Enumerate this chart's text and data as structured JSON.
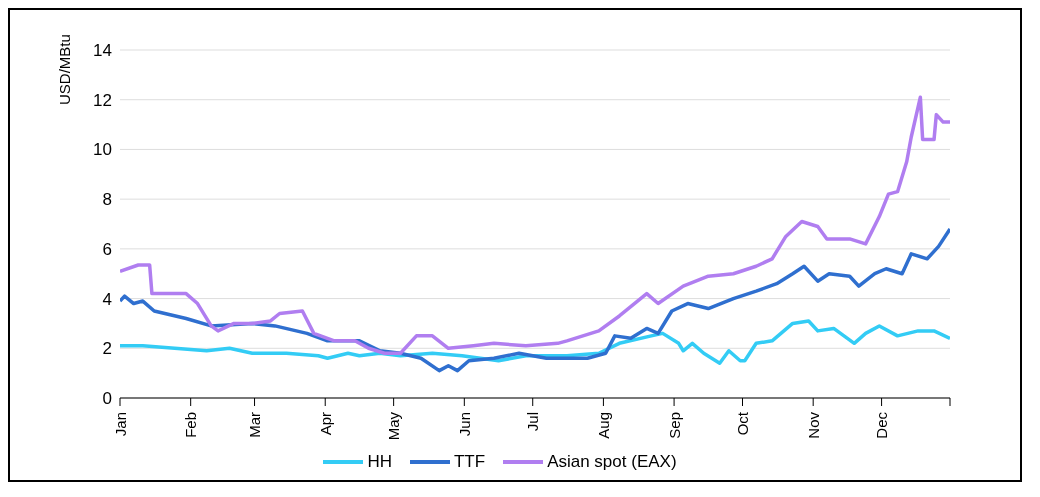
{
  "chart_data": {
    "type": "line",
    "ylabel": "USD/MBtu",
    "xlim": [
      "--01-01",
      "--12-31"
    ],
    "xticks": [
      {
        "value": "--01-01",
        "label": "Jan"
      },
      {
        "value": "--02-01",
        "label": "Feb"
      },
      {
        "value": "--03-01",
        "label": "Mar"
      },
      {
        "value": "--04-01",
        "label": "Apr"
      },
      {
        "value": "--05-01",
        "label": "May"
      },
      {
        "value": "--06-01",
        "label": "Jun"
      },
      {
        "value": "--07-01",
        "label": "Jul"
      },
      {
        "value": "--08-01",
        "label": "Aug"
      },
      {
        "value": "--09-01",
        "label": "Sep"
      },
      {
        "value": "--10-01",
        "label": "Oct"
      },
      {
        "value": "--11-01",
        "label": "Nov"
      },
      {
        "value": "--12-01",
        "label": "Dec"
      },
      {
        "value": "--12-31",
        "label": null
      }
    ],
    "ylim": [
      0,
      14
    ],
    "yticks": [
      0,
      2,
      4,
      6,
      8,
      10,
      12,
      14
    ],
    "grid": "y",
    "legend": "bottom",
    "marker": "none",
    "line_style": "solid",
    "series": [
      {
        "name": "HH",
        "color": "#33ccf5",
        "x": [
          "--01-01",
          "--01-11",
          "--01-25",
          "--02-08",
          "--02-18",
          "--02-28",
          "--03-15",
          "--03-29",
          "--04-02",
          "--04-11",
          "--04-16",
          "--04-25",
          "--05-04",
          "--05-18",
          "--05-31",
          "--06-16",
          "--06-28",
          "--07-16",
          "--07-30",
          "--08-08",
          "--08-22",
          "--08-27",
          "--09-03",
          "--09-05",
          "--09-09",
          "--09-14",
          "--09-21",
          "--09-25",
          "--09-30",
          "--10-02",
          "--10-07",
          "--10-14",
          "--10-23",
          "--10-30",
          "--11-03",
          "--11-10",
          "--11-19",
          "--11-24",
          "--11-30",
          "--12-08",
          "--12-17",
          "--12-24",
          "--12-31"
        ],
        "values": [
          2.1,
          2.1,
          2.0,
          1.9,
          2.0,
          1.8,
          1.8,
          1.7,
          1.6,
          1.8,
          1.7,
          1.8,
          1.7,
          1.8,
          1.7,
          1.5,
          1.7,
          1.7,
          1.8,
          2.2,
          2.5,
          2.6,
          2.2,
          1.9,
          2.2,
          1.8,
          1.4,
          1.9,
          1.5,
          1.5,
          2.2,
          2.3,
          3.0,
          3.1,
          2.7,
          2.8,
          2.2,
          2.6,
          2.9,
          2.5,
          2.7,
          2.7,
          2.4
        ]
      },
      {
        "name": "TTF",
        "color": "#2f6fcf",
        "x": [
          "--01-01",
          "--01-03",
          "--01-07",
          "--01-11",
          "--01-16",
          "--01-30",
          "--02-10",
          "--02-28",
          "--03-10",
          "--03-24",
          "--04-02",
          "--04-16",
          "--04-25",
          "--05-04",
          "--05-13",
          "--05-21",
          "--05-25",
          "--05-29",
          "--06-03",
          "--06-14",
          "--06-25",
          "--07-07",
          "--07-25",
          "--08-02",
          "--08-06",
          "--08-13",
          "--08-20",
          "--08-25",
          "--08-31",
          "--09-07",
          "--09-16",
          "--09-27",
          "--10-07",
          "--10-16",
          "--10-23",
          "--10-28",
          "--11-03",
          "--11-08",
          "--11-17",
          "--11-21",
          "--11-28",
          "--12-03",
          "--12-10",
          "--12-14",
          "--12-21",
          "--12-26",
          "--12-31"
        ],
        "values": [
          3.9,
          4.1,
          3.8,
          3.9,
          3.5,
          3.2,
          2.9,
          3.0,
          2.9,
          2.6,
          2.3,
          2.3,
          1.9,
          1.8,
          1.6,
          1.1,
          1.3,
          1.1,
          1.5,
          1.6,
          1.8,
          1.6,
          1.6,
          1.8,
          2.5,
          2.4,
          2.8,
          2.6,
          3.5,
          3.8,
          3.6,
          4.0,
          4.3,
          4.6,
          5.0,
          5.3,
          4.7,
          5.0,
          4.9,
          4.5,
          5.0,
          5.2,
          5.0,
          5.8,
          5.6,
          6.1,
          6.8
        ]
      },
      {
        "name": "Asian spot (EAX)",
        "color": "#b07ef0",
        "x": [
          "--01-01",
          "--01-09",
          "--01-14",
          "--01-15",
          "--01-30",
          "--02-04",
          "--02-10",
          "--02-13",
          "--02-20",
          "--02-28",
          "--03-08",
          "--03-12",
          "--03-22",
          "--03-27",
          "--04-05",
          "--04-14",
          "--04-20",
          "--04-27",
          "--05-04",
          "--05-11",
          "--05-18",
          "--05-25",
          "--06-05",
          "--06-14",
          "--06-28",
          "--07-12",
          "--07-16",
          "--07-30",
          "--08-08",
          "--08-20",
          "--08-25",
          "--09-05",
          "--09-16",
          "--09-27",
          "--10-07",
          "--10-14",
          "--10-20",
          "--10-27",
          "--11-03",
          "--11-07",
          "--11-17",
          "--11-24",
          "--11-30",
          "--12-04",
          "--12-08",
          "--12-12",
          "--12-14",
          "--12-18",
          "--12-19",
          "--12-24",
          "--12-25",
          "--12-28",
          "--12-31"
        ],
        "values": [
          5.1,
          5.35,
          5.35,
          4.2,
          4.2,
          3.8,
          2.9,
          2.7,
          3.0,
          3.0,
          3.1,
          3.4,
          3.5,
          2.6,
          2.3,
          2.3,
          2.0,
          1.8,
          1.8,
          2.5,
          2.5,
          2.0,
          2.1,
          2.2,
          2.1,
          2.2,
          2.3,
          2.7,
          3.3,
          4.2,
          3.8,
          4.5,
          4.9,
          5.0,
          5.3,
          5.6,
          6.5,
          7.1,
          6.9,
          6.4,
          6.4,
          6.2,
          7.3,
          8.2,
          8.3,
          9.5,
          10.5,
          12.1,
          10.4,
          10.4,
          11.4,
          11.1,
          11.1
        ]
      }
    ]
  }
}
